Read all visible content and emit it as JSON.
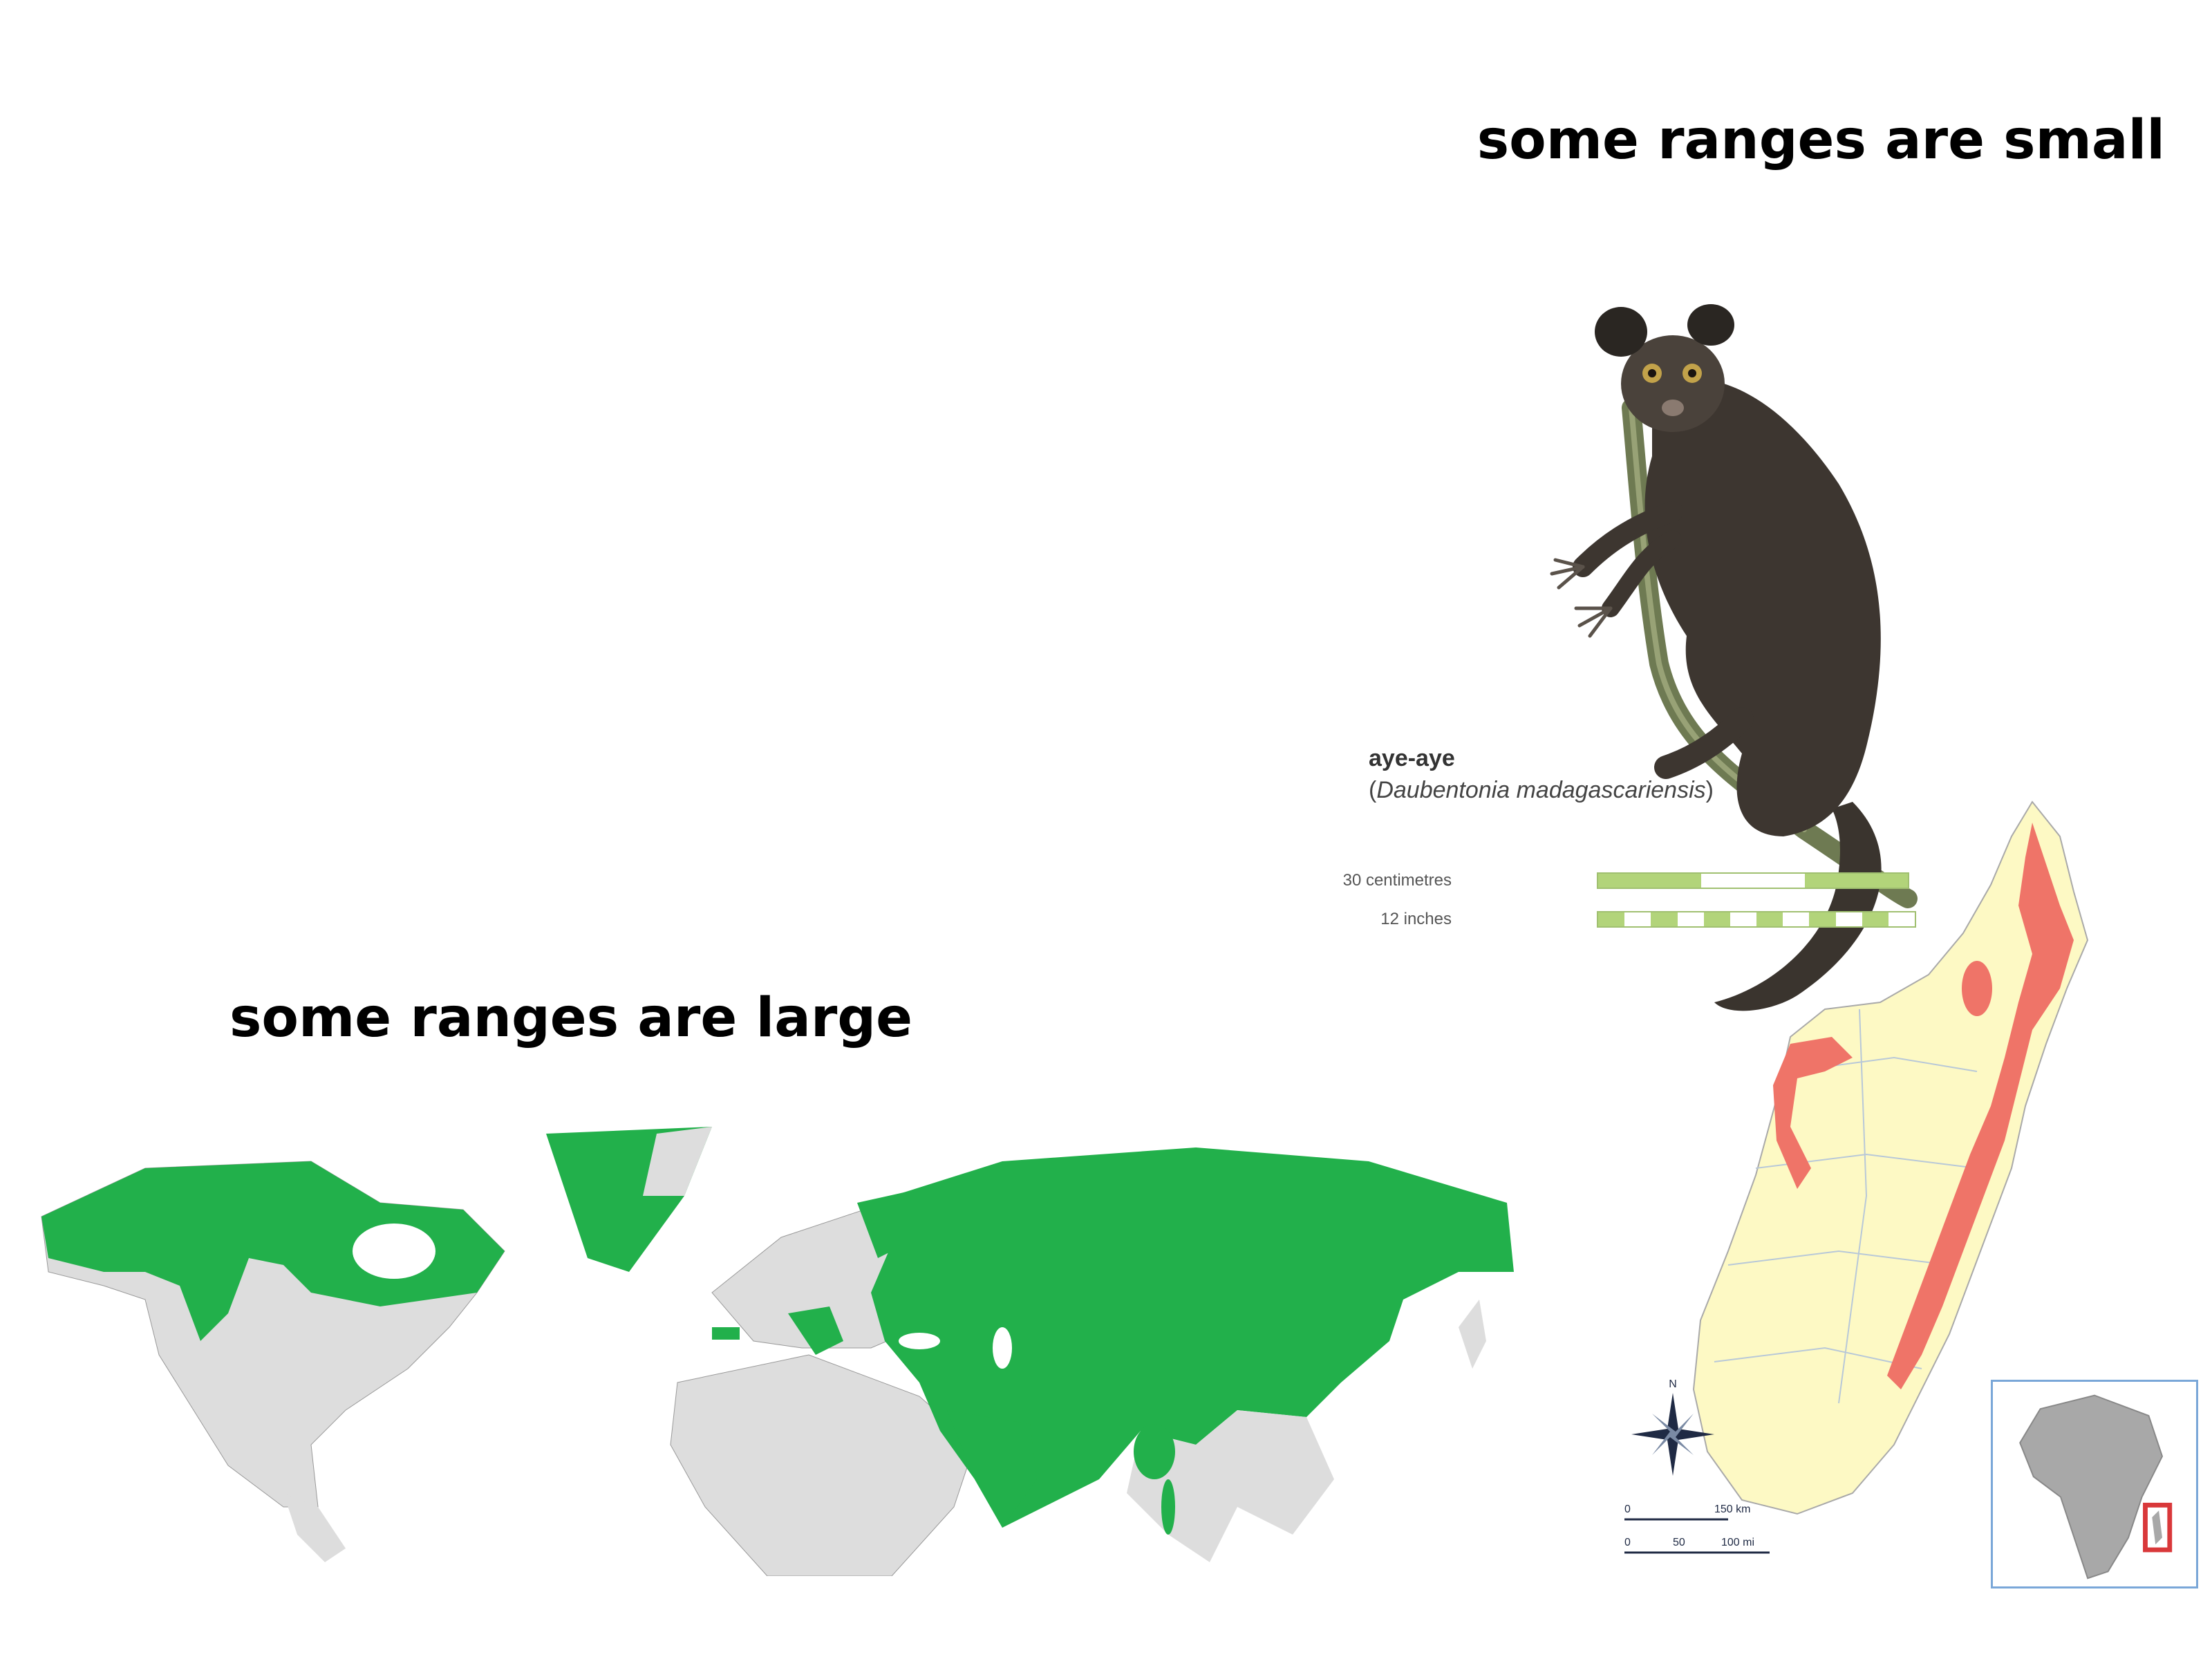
{
  "headings": {
    "small": "some ranges are small",
    "large": "some ranges are large"
  },
  "aye_aye": {
    "common_name": "aye-aye",
    "paren_open": "(",
    "latin_name": "Daubentonia  madagascariensis",
    "paren_close": ")",
    "scale_cm_label": "30 centimetres",
    "scale_in_label": "12 inches"
  },
  "madagascar_map": {
    "scale_km_zero": "0",
    "scale_km": "150 km",
    "scale_mi_zero": "0",
    "scale_mi_mid": "50",
    "scale_mi": "100 mi",
    "compass_n": "N"
  },
  "colors": {
    "range_green": "#22b04b",
    "land_grey": "#dddddd",
    "range_red": "#ef7468",
    "madagascar_land": "#fdf9c4",
    "inset_border": "#7aa7d8",
    "inset_highlight": "#d9383a"
  }
}
